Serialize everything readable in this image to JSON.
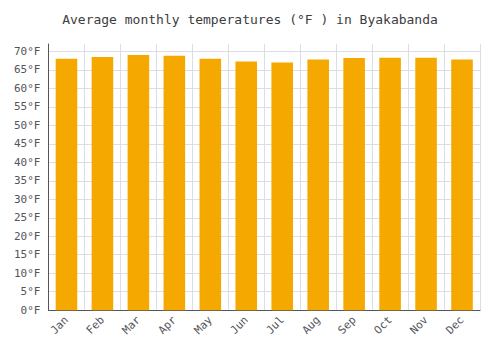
{
  "chart_data": {
    "type": "bar",
    "title": "Average monthly temperatures (°F ) in Byakabanda",
    "categories": [
      "Jan",
      "Feb",
      "Mar",
      "Apr",
      "May",
      "Jun",
      "Jul",
      "Aug",
      "Sep",
      "Oct",
      "Nov",
      "Dec"
    ],
    "values": [
      68.0,
      68.5,
      69.0,
      68.8,
      68.0,
      67.3,
      67.0,
      67.8,
      68.2,
      68.3,
      68.3,
      67.8
    ],
    "color": "#F5A800",
    "ylim": [
      0,
      72
    ],
    "yticks": [
      {
        "value": 0,
        "label": "0°F"
      },
      {
        "value": 5,
        "label": "5°F"
      },
      {
        "value": 10,
        "label": "10°F"
      },
      {
        "value": 15,
        "label": "15°F"
      },
      {
        "value": 20,
        "label": "20°F"
      },
      {
        "value": 25,
        "label": "25°F"
      },
      {
        "value": 30,
        "label": "30°F"
      },
      {
        "value": 35,
        "label": "35°F"
      },
      {
        "value": 40,
        "label": "40°F"
      },
      {
        "value": 45,
        "label": "45°F"
      },
      {
        "value": 50,
        "label": "50°F"
      },
      {
        "value": 55,
        "label": "55°F"
      },
      {
        "value": 60,
        "label": "60°F"
      },
      {
        "value": 65,
        "label": "65°F"
      },
      {
        "value": 70,
        "label": "70°F"
      }
    ],
    "grid": true
  }
}
